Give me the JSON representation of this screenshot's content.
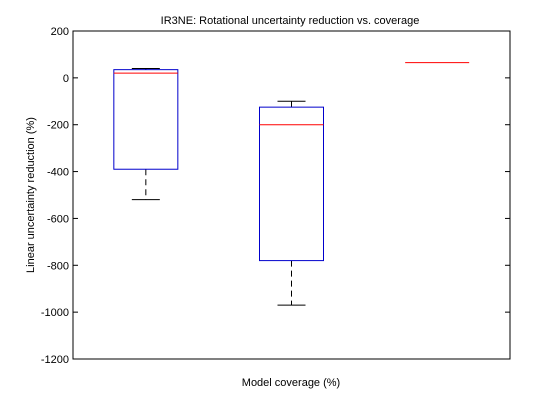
{
  "chart_data": {
    "type": "boxplot",
    "title": "IR3NE: Rotational uncertainty reduction vs. coverage",
    "xlabel": "Model coverage (%)",
    "ylabel": "Linear uncertainty reduction (%)",
    "ylim": [
      -1200,
      200
    ],
    "yticks": [
      200,
      0,
      -200,
      -400,
      -600,
      -800,
      -1000,
      -1200
    ],
    "grid": false,
    "colors": {
      "box": "#0000cc",
      "median": "#ff0000",
      "whisker": "#000000"
    },
    "boxes": [
      {
        "whisker_low": -520,
        "q1": -390,
        "median": 20,
        "q3": 35,
        "whisker_high": 40
      },
      {
        "whisker_low": -970,
        "q1": -780,
        "median": -200,
        "q3": -125,
        "whisker_high": -100
      },
      {
        "whisker_low": 65,
        "q1": 65,
        "median": 65,
        "q3": 65,
        "whisker_high": 65
      }
    ]
  }
}
